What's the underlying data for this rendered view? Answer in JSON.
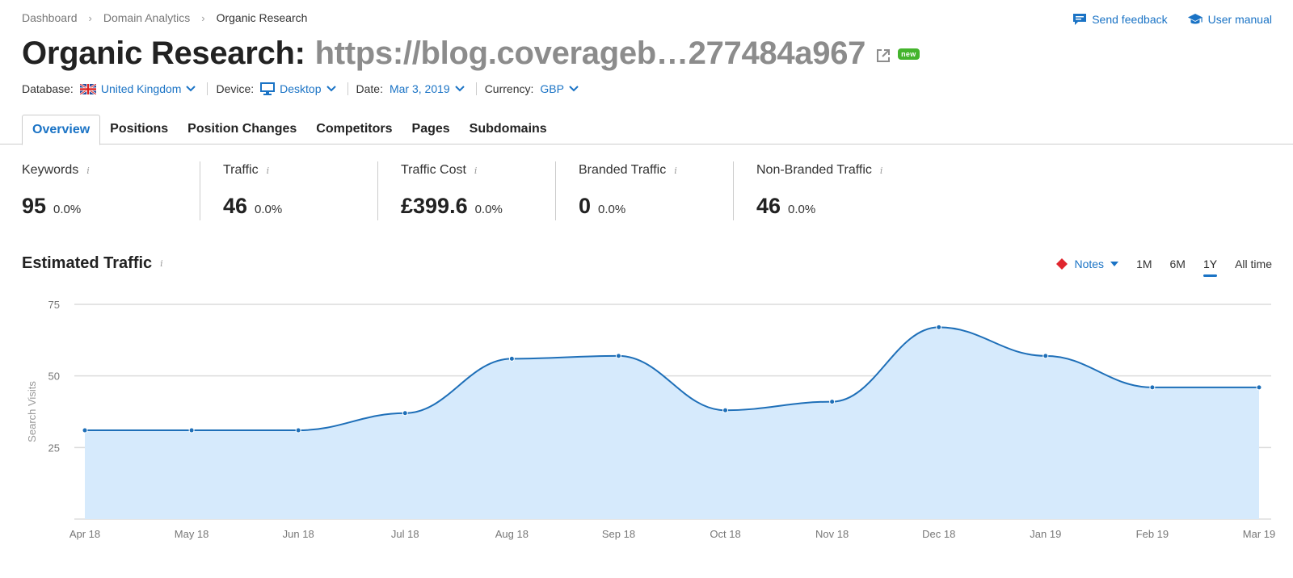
{
  "breadcrumb": [
    "Dashboard",
    "Domain Analytics",
    "Organic Research"
  ],
  "header_links": {
    "feedback": "Send feedback",
    "manual": "User manual"
  },
  "title": {
    "prefix": "Organic Research:",
    "domain": "https://blog.coverageb…277484a967",
    "badge": "new"
  },
  "filters": {
    "database": {
      "label": "Database:",
      "value": "United Kingdom"
    },
    "device": {
      "label": "Device:",
      "value": "Desktop"
    },
    "date": {
      "label": "Date:",
      "value": "Mar 3, 2019"
    },
    "currency": {
      "label": "Currency:",
      "value": "GBP"
    }
  },
  "tabs": [
    "Overview",
    "Positions",
    "Position Changes",
    "Competitors",
    "Pages",
    "Subdomains"
  ],
  "active_tab": "Overview",
  "metrics": [
    {
      "label": "Keywords",
      "value": "95",
      "change": "0.0%"
    },
    {
      "label": "Traffic",
      "value": "46",
      "change": "0.0%"
    },
    {
      "label": "Traffic Cost",
      "value": "£399.6",
      "change": "0.0%"
    },
    {
      "label": "Branded Traffic",
      "value": "0",
      "change": "0.0%"
    },
    {
      "label": "Non-Branded Traffic",
      "value": "46",
      "change": "0.0%"
    }
  ],
  "info_glyph": "i",
  "chart_section": {
    "title": "Estimated Traffic",
    "notes_label": "Notes",
    "ranges": [
      "1M",
      "6M",
      "1Y",
      "All time"
    ],
    "active_range": "1Y"
  },
  "colors": {
    "accent": "#1a73c5",
    "line": "#1e6fb8",
    "area": "#d6eafc",
    "notes_marker": "#e0262e"
  },
  "chart_data": {
    "type": "area",
    "ylabel": "Search Visits",
    "ylim": [
      0,
      75
    ],
    "yticks": [
      25,
      50,
      75
    ],
    "grid": true,
    "categories": [
      "Apr 18",
      "May 18",
      "Jun 18",
      "Jul 18",
      "Aug 18",
      "Sep 18",
      "Oct 18",
      "Nov 18",
      "Dec 18",
      "Jan 19",
      "Feb 19",
      "Mar 19"
    ],
    "series": [
      {
        "values": [
          31,
          31,
          31,
          37,
          56,
          57,
          38,
          41,
          67,
          57,
          46,
          46
        ]
      }
    ]
  }
}
